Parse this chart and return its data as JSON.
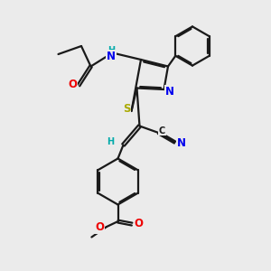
{
  "background_color": "#ebebeb",
  "bond_color": "#1a1a1a",
  "bond_width": 1.6,
  "dbo": 0.055,
  "atom_colors": {
    "S": "#aaaa00",
    "N": "#0000ee",
    "O": "#ee0000",
    "C": "#1a1a1a",
    "H": "#00aaaa"
  },
  "font_size": 8.5,
  "fig_width": 3.0,
  "fig_height": 3.0,
  "dpi": 100
}
